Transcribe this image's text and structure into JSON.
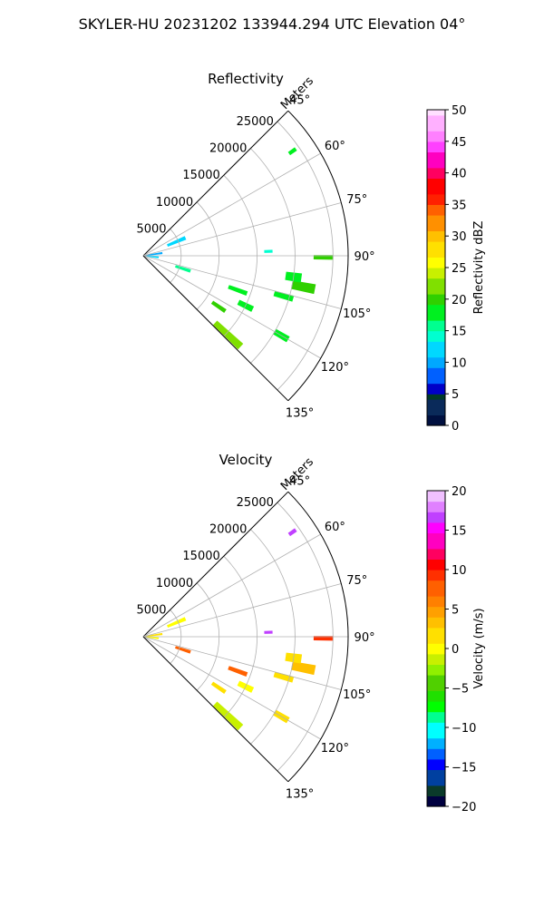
{
  "figure": {
    "suptitle": "SKYLER-HU  20231202  133944.294 UTC Elevation 04°"
  },
  "chart_data": [
    {
      "type": "polar",
      "title": "Reflectivity",
      "radial_axis_label": "Meters",
      "radial_ticks": [
        5000,
        10000,
        15000,
        20000,
        25000
      ],
      "radial_tick_labels": [
        "5000",
        "10000",
        "15000",
        "20000",
        "25000"
      ],
      "rlim": [
        0,
        27000
      ],
      "theta_range_deg": [
        45,
        135
      ],
      "theta_ticks_deg": [
        45,
        60,
        75,
        90,
        105,
        120,
        135
      ],
      "theta_tick_labels": [
        "45°",
        "60°",
        "75°",
        "90°",
        "105°",
        "120°",
        "135°"
      ],
      "grid": true,
      "colorbar": {
        "label": "Reflectivity dBZ",
        "range": [
          0,
          50
        ],
        "ticks": [
          0,
          5,
          10,
          15,
          20,
          25,
          30,
          35,
          40,
          45,
          50
        ],
        "tick_labels": [
          "0",
          "5",
          "10",
          "15",
          "20",
          "25",
          "30",
          "35",
          "40",
          "45",
          "50"
        ]
      },
      "echoes": [
        {
          "az": 90.5,
          "az_w": 1.2,
          "r": [
            22500,
            25000
          ],
          "value": 20
        },
        {
          "az": 101,
          "az_w": 3,
          "r": [
            20000,
            23000
          ],
          "value": 19
        },
        {
          "az": 98,
          "az_w": 3,
          "r": [
            19000,
            21000
          ],
          "value": 18
        },
        {
          "az": 133,
          "az_w": 3,
          "r": [
            13000,
            17500
          ],
          "value": 21
        },
        {
          "az": 124,
          "az_w": 2,
          "r": [
            11000,
            13000
          ],
          "value": 19
        },
        {
          "az": 116,
          "az_w": 2.5,
          "r": [
            14000,
            16000
          ],
          "value": 18
        },
        {
          "az": 110,
          "az_w": 2,
          "r": [
            12000,
            14500
          ],
          "value": 18
        },
        {
          "az": 106,
          "az_w": 2,
          "r": [
            18000,
            20500
          ],
          "value": 17
        },
        {
          "az": 55,
          "az_w": 1,
          "r": [
            23500,
            24500
          ],
          "value": 18
        },
        {
          "az": 108,
          "az_w": 3,
          "r": [
            4500,
            6500
          ],
          "value": 16
        },
        {
          "az": 67,
          "az_w": 4,
          "r": [
            3500,
            6000
          ],
          "value": 11
        },
        {
          "az": 82,
          "az_w": 4,
          "r": [
            0,
            2500
          ],
          "value": 9
        },
        {
          "az": 96,
          "az_w": 4,
          "r": [
            0,
            2000
          ],
          "value": 12
        },
        {
          "az": 120,
          "az_w": 2,
          "r": [
            20000,
            22000
          ],
          "value": 18
        },
        {
          "az": 88,
          "az_w": 1,
          "r": [
            16000,
            17000
          ],
          "value": 14
        }
      ]
    },
    {
      "type": "polar",
      "title": "Velocity",
      "radial_axis_label": "Meters",
      "radial_ticks": [
        5000,
        10000,
        15000,
        20000,
        25000
      ],
      "radial_tick_labels": [
        "5000",
        "10000",
        "15000",
        "20000",
        "25000"
      ],
      "rlim": [
        0,
        27000
      ],
      "theta_range_deg": [
        45,
        135
      ],
      "theta_ticks_deg": [
        45,
        60,
        75,
        90,
        105,
        120,
        135
      ],
      "theta_tick_labels": [
        "45°",
        "60°",
        "75°",
        "90°",
        "105°",
        "120°",
        "135°"
      ],
      "grid": true,
      "colorbar": {
        "label": "Velocity (m/s)",
        "range": [
          -20,
          20
        ],
        "ticks": [
          -20,
          -15,
          -10,
          -5,
          0,
          5,
          10,
          15,
          20
        ],
        "tick_labels": [
          "−20",
          "−15",
          "−10",
          "−5",
          "0",
          "5",
          "10",
          "15",
          "20"
        ]
      },
      "echoes": [
        {
          "az": 90.5,
          "az_w": 1.2,
          "r": [
            22500,
            25000
          ],
          "value": 9
        },
        {
          "az": 101,
          "az_w": 3,
          "r": [
            20000,
            23000
          ],
          "value": 3
        },
        {
          "az": 98,
          "az_w": 3,
          "r": [
            19000,
            21000
          ],
          "value": 2
        },
        {
          "az": 133,
          "az_w": 3,
          "r": [
            13000,
            17500
          ],
          "value": -2
        },
        {
          "az": 124,
          "az_w": 2,
          "r": [
            11000,
            13000
          ],
          "value": 1
        },
        {
          "az": 116,
          "az_w": 2.5,
          "r": [
            14000,
            16000
          ],
          "value": 0
        },
        {
          "az": 110,
          "az_w": 2,
          "r": [
            12000,
            14500
          ],
          "value": 7
        },
        {
          "az": 106,
          "az_w": 2,
          "r": [
            18000,
            20500
          ],
          "value": 2
        },
        {
          "az": 55,
          "az_w": 1,
          "r": [
            23500,
            24500
          ],
          "value": 16
        },
        {
          "az": 108,
          "az_w": 3,
          "r": [
            4500,
            6500
          ],
          "value": 8
        },
        {
          "az": 67,
          "az_w": 4,
          "r": [
            3500,
            6000
          ],
          "value": 0
        },
        {
          "az": 82,
          "az_w": 4,
          "r": [
            0,
            2500
          ],
          "value": 1
        },
        {
          "az": 96,
          "az_w": 4,
          "r": [
            0,
            2000
          ],
          "value": 0
        },
        {
          "az": 120,
          "az_w": 2,
          "r": [
            20000,
            22000
          ],
          "value": 1
        },
        {
          "az": 88,
          "az_w": 1,
          "r": [
            16000,
            17000
          ],
          "value": 16
        }
      ]
    }
  ]
}
